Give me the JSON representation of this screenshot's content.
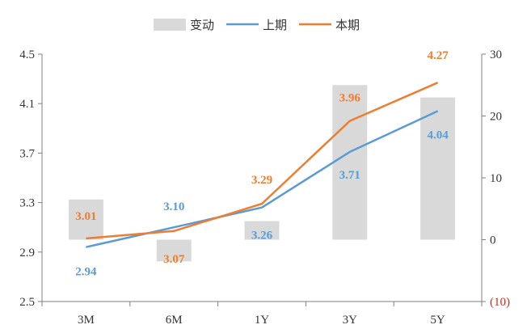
{
  "chart_data": {
    "type": "combo",
    "categories": [
      "3M",
      "6M",
      "1Y",
      "3Y",
      "5Y"
    ],
    "legend": [
      {
        "name": "变动",
        "kind": "bar",
        "color": "#d9d9d9"
      },
      {
        "name": "上期",
        "kind": "line",
        "color": "#5b9bd5"
      },
      {
        "name": "本期",
        "kind": "line",
        "color": "#ed7d31"
      }
    ],
    "series": [
      {
        "name": "变动",
        "type": "bar",
        "axis": "right",
        "color": "#d9d9d9",
        "values": [
          6.5,
          -3.5,
          3.0,
          25.0,
          23.0
        ]
      },
      {
        "name": "上期",
        "type": "line",
        "axis": "left",
        "color": "#5b9bd5",
        "values": [
          2.94,
          3.1,
          3.26,
          3.71,
          4.04
        ]
      },
      {
        "name": "本期",
        "type": "line",
        "axis": "left",
        "color": "#ed7d31",
        "values": [
          3.01,
          3.07,
          3.29,
          3.96,
          4.27
        ]
      }
    ],
    "data_labels": {
      "上期": [
        "2.94",
        "3.10",
        "3.26",
        "3.71",
        "4.04"
      ],
      "本期": [
        "3.01",
        "3.07",
        "3.29",
        "3.96",
        "4.27"
      ]
    },
    "left_axis": {
      "ylim": [
        2.5,
        4.5
      ],
      "ticks": [
        "2.5",
        "2.9",
        "3.3",
        "3.7",
        "4.1",
        "4.5"
      ]
    },
    "right_axis": {
      "ylim": [
        -10,
        30
      ],
      "ticks": [
        "(10)",
        "0",
        "10",
        "20",
        "30"
      ],
      "negative_color": "#d9261c"
    },
    "grid": false,
    "legend_position": "top"
  }
}
